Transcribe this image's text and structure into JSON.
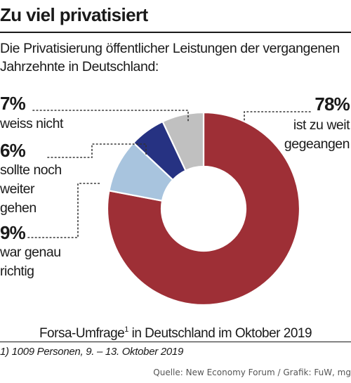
{
  "title": "Zu viel privatisiert",
  "subtitle": "Die Privatisierung öffentlicher Leistungen der vergangenen Jahrzehnte in Deutschland:",
  "colors": {
    "zu_weit": "#9E2F36",
    "war_genau_richtig": "#A8C4DE",
    "sollte_noch_weiter": "#263282",
    "weiss_nicht": "#C0C0C0",
    "leader_lines": "#333333"
  },
  "chart_data": {
    "type": "pie",
    "donut": true,
    "order": "clockwise from top",
    "slices": [
      {
        "key": "zu_weit",
        "value": 78,
        "pct_label": "78%",
        "label": "ist zu weit\ngegeangen"
      },
      {
        "key": "war_genau_richtig",
        "value": 9,
        "pct_label": "9%",
        "label": "war genau\nrichtig"
      },
      {
        "key": "sollte_noch_weiter",
        "value": 6,
        "pct_label": "6%",
        "label": "sollte noch\nweiter\ngehen"
      },
      {
        "key": "weiss_nicht",
        "value": 7,
        "pct_label": "7%",
        "label": "weiss nicht"
      }
    ]
  },
  "caption": {
    "text_before": "Forsa-Umfrage",
    "footnote_mark": "1",
    "text_after": " in Deutschland im Oktober 2019"
  },
  "footnote": "1) 1009 Personen, 9. – 13. Oktober 2019",
  "source": "Quelle: New Economy Forum / Grafik: FuW, mg"
}
